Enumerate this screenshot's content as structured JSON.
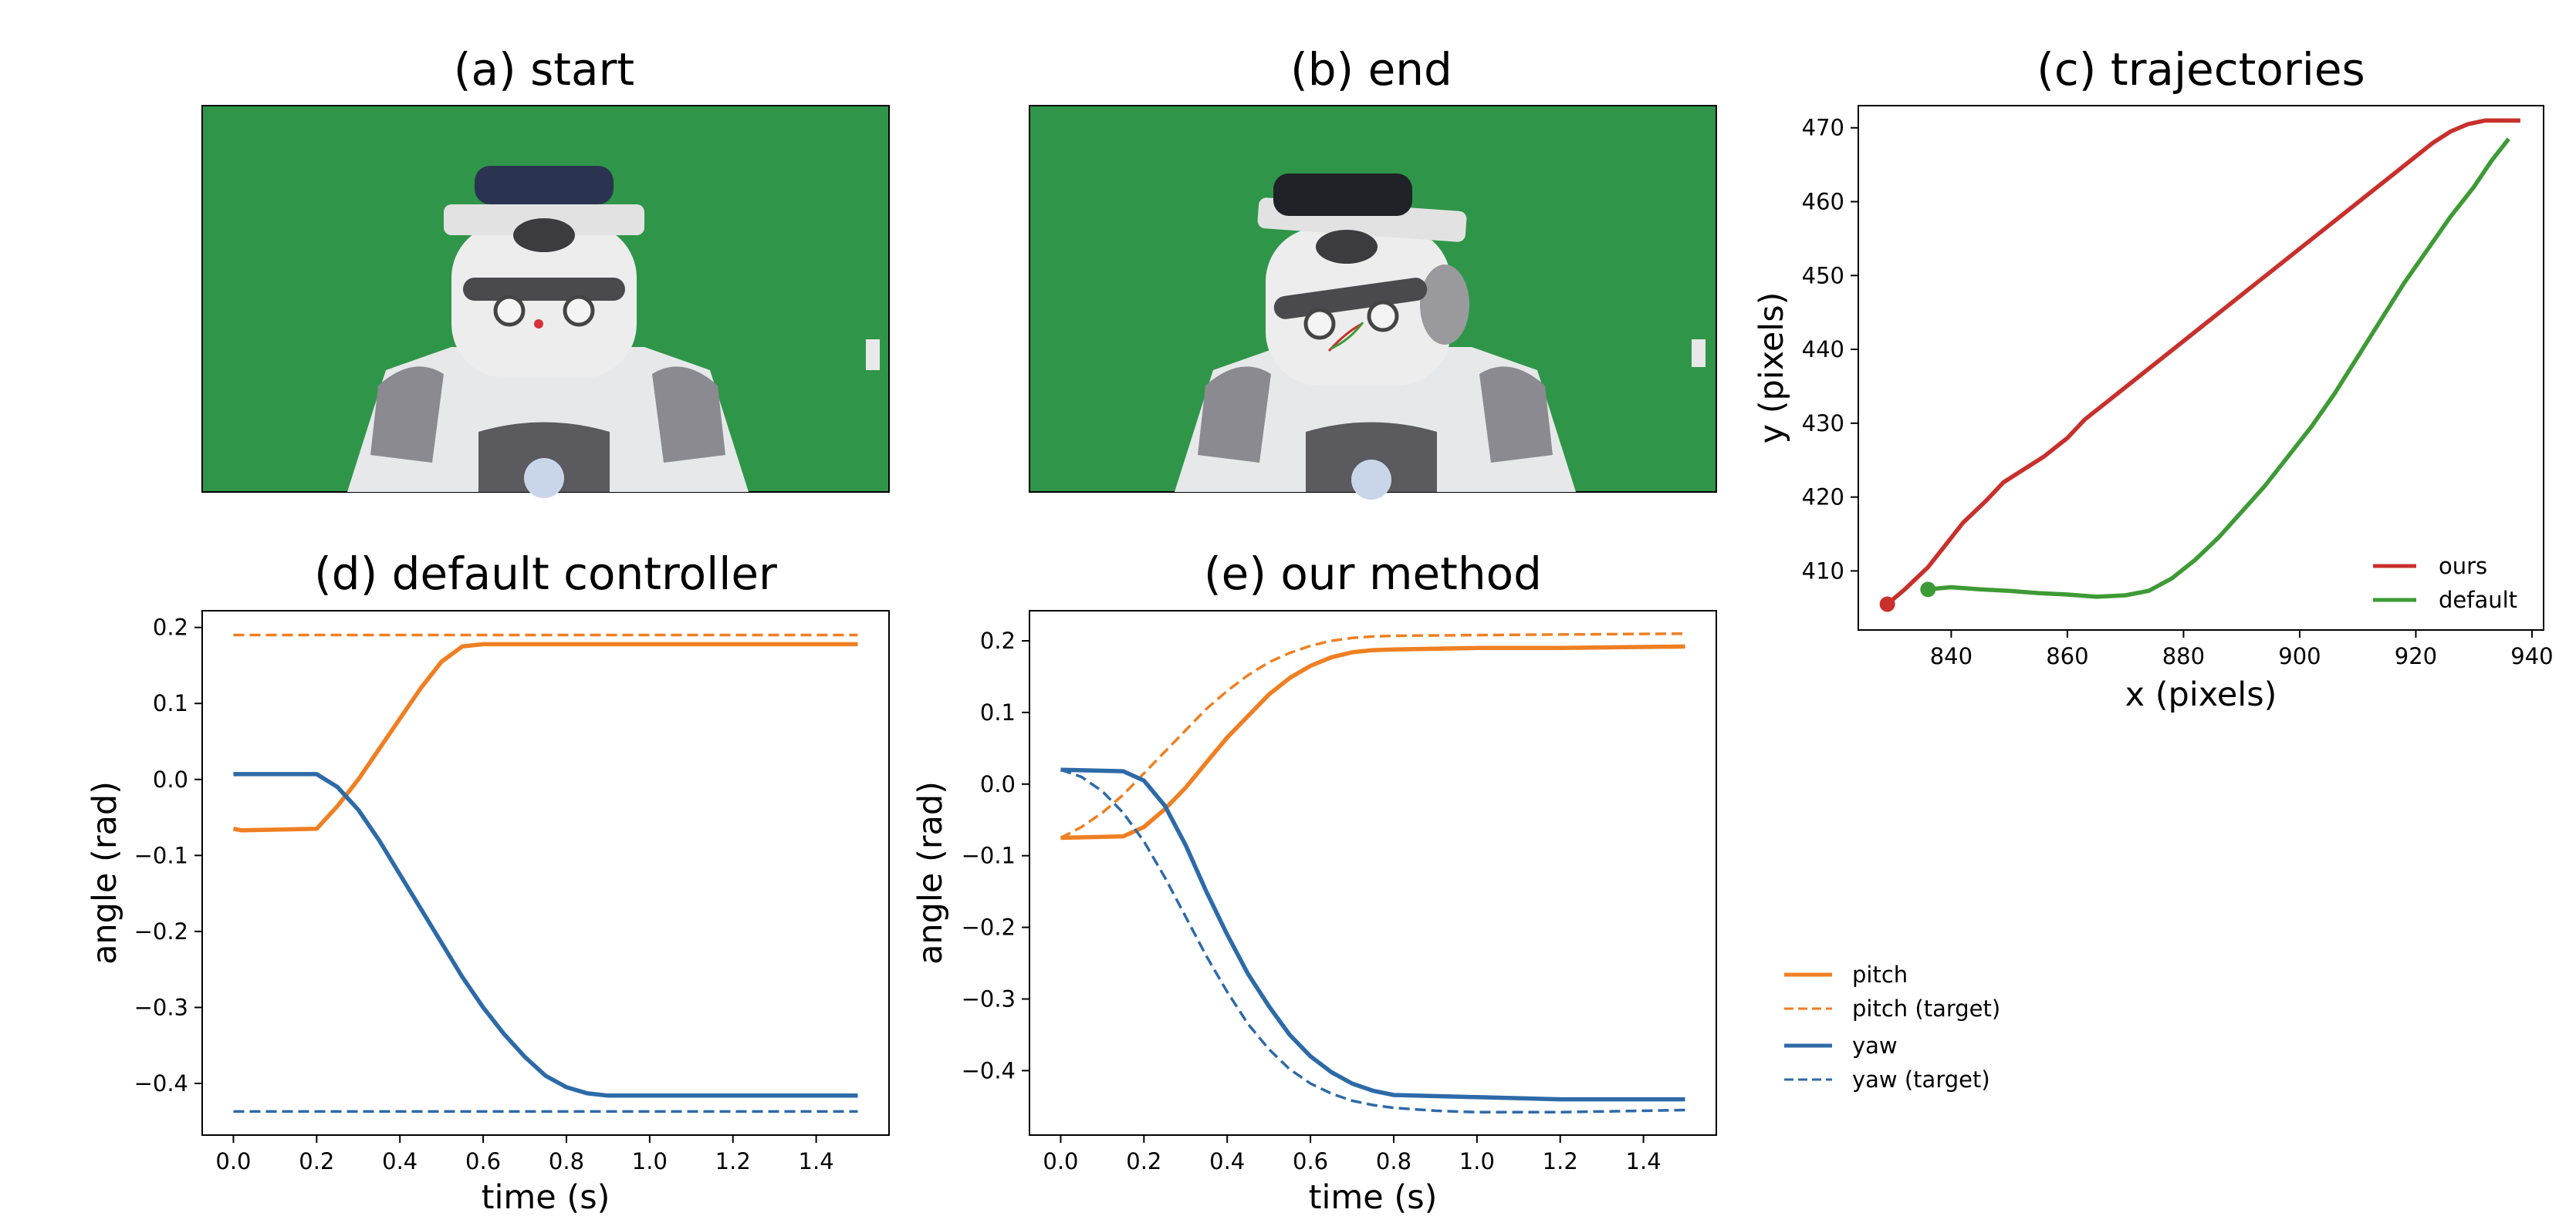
{
  "panels": {
    "a": {
      "title": "(a) start"
    },
    "b": {
      "title": "(b) end"
    }
  },
  "colors": {
    "pitch": "#ef7f22",
    "yaw": "#2d6aa8",
    "ours": "#c8302c",
    "default": "#3e9a35",
    "green_screen": "#2f9649"
  },
  "icons": {
    "a": "robot-head-start-photo",
    "b": "robot-head-end-photo"
  },
  "chart_data": [
    {
      "id": "c",
      "type": "line",
      "title": "(c) trajectories",
      "xlabel": "x (pixels)",
      "ylabel": "y (pixels)",
      "xlim": [
        824,
        942
      ],
      "ylim": [
        402,
        473
      ],
      "xticks": [
        840,
        860,
        880,
        900,
        920,
        940
      ],
      "yticks": [
        410,
        420,
        430,
        440,
        450,
        460,
        470
      ],
      "legend_position": "lower right",
      "series": [
        {
          "name": "ours",
          "color": "#c8302c",
          "start_marker": true,
          "x": [
            829,
            832,
            836,
            839,
            842,
            846,
            849,
            853,
            856,
            860,
            863,
            867,
            871,
            875,
            879,
            883,
            887,
            891,
            895,
            899,
            903,
            907,
            911,
            915,
            919,
            923,
            926,
            929,
            932,
            935,
            938
          ],
          "y": [
            405.5,
            407.5,
            410.5,
            413.5,
            416.5,
            419.5,
            422,
            424,
            425.5,
            428,
            430.5,
            433,
            435.5,
            438,
            440.5,
            443,
            445.5,
            448,
            450.5,
            453,
            455.5,
            458,
            460.5,
            463,
            465.5,
            468,
            469.5,
            470.5,
            471,
            471,
            471
          ]
        },
        {
          "name": "default",
          "color": "#3e9a35",
          "start_marker": true,
          "x": [
            836,
            840,
            845,
            850,
            855,
            860,
            865,
            870,
            874,
            878,
            882,
            886,
            890,
            894,
            898,
            902,
            906,
            910,
            914,
            918,
            922,
            926,
            930,
            933,
            936
          ],
          "y": [
            407.5,
            407.8,
            407.5,
            407.3,
            407,
            406.8,
            406.5,
            406.7,
            407.3,
            409,
            411.5,
            414.5,
            418,
            421.5,
            425.5,
            429.5,
            434,
            439,
            444,
            449,
            453.5,
            458,
            462,
            465.5,
            468.5
          ]
        }
      ]
    },
    {
      "id": "d",
      "type": "line",
      "title": "(d) default controller",
      "xlabel": "time (s)",
      "ylabel": "angle (rad)",
      "xlim": [
        -0.075,
        1.575
      ],
      "ylim": [
        -0.468,
        0.222
      ],
      "xticks": [
        0.0,
        0.2,
        0.4,
        0.6,
        0.8,
        1.0,
        1.2,
        1.4
      ],
      "yticks": [
        0.2,
        0.1,
        0.0,
        -0.1,
        -0.2,
        -0.3,
        -0.4
      ],
      "series": [
        {
          "name": "pitch",
          "color": "#ef7f22",
          "dash": false,
          "x": [
            0.0,
            0.02,
            0.2,
            0.25,
            0.3,
            0.35,
            0.4,
            0.45,
            0.5,
            0.55,
            0.6,
            0.7,
            1.0,
            1.5
          ],
          "y": [
            -0.065,
            -0.067,
            -0.065,
            -0.035,
            0.0,
            0.04,
            0.08,
            0.12,
            0.155,
            0.175,
            0.178,
            0.178,
            0.178,
            0.178
          ]
        },
        {
          "name": "pitch (target)",
          "color": "#ef7f22",
          "dash": true,
          "x": [
            0.0,
            1.5
          ],
          "y": [
            0.19,
            0.19
          ]
        },
        {
          "name": "yaw",
          "color": "#2d6aa8",
          "dash": false,
          "x": [
            0.0,
            0.2,
            0.25,
            0.3,
            0.35,
            0.4,
            0.45,
            0.5,
            0.55,
            0.6,
            0.65,
            0.7,
            0.75,
            0.8,
            0.85,
            0.9,
            1.0,
            1.5
          ],
          "y": [
            0.007,
            0.007,
            -0.01,
            -0.04,
            -0.08,
            -0.125,
            -0.17,
            -0.215,
            -0.26,
            -0.3,
            -0.335,
            -0.365,
            -0.39,
            -0.405,
            -0.413,
            -0.416,
            -0.416,
            -0.416
          ]
        },
        {
          "name": "yaw (target)",
          "color": "#2d6aa8",
          "dash": true,
          "x": [
            0.0,
            1.5
          ],
          "y": [
            -0.437,
            -0.437
          ]
        }
      ]
    },
    {
      "id": "e",
      "type": "line",
      "title": "(e) our method",
      "xlabel": "time (s)",
      "ylabel": "angle (rad)",
      "xlim": [
        -0.075,
        1.575
      ],
      "ylim": [
        -0.49,
        0.242
      ],
      "xticks": [
        0.0,
        0.2,
        0.4,
        0.6,
        0.8,
        1.0,
        1.2,
        1.4
      ],
      "yticks": [
        0.2,
        0.1,
        0.0,
        -0.1,
        -0.2,
        -0.3,
        -0.4
      ],
      "series": [
        {
          "name": "pitch",
          "color": "#ef7f22",
          "dash": false,
          "x": [
            0.0,
            0.15,
            0.2,
            0.25,
            0.3,
            0.35,
            0.4,
            0.45,
            0.5,
            0.55,
            0.6,
            0.65,
            0.7,
            0.75,
            0.8,
            1.0,
            1.2,
            1.5
          ],
          "y": [
            -0.075,
            -0.073,
            -0.06,
            -0.035,
            -0.005,
            0.03,
            0.065,
            0.095,
            0.125,
            0.148,
            0.165,
            0.177,
            0.184,
            0.187,
            0.188,
            0.19,
            0.19,
            0.192
          ]
        },
        {
          "name": "pitch (target)",
          "color": "#ef7f22",
          "dash": true,
          "x": [
            0.0,
            0.05,
            0.1,
            0.15,
            0.2,
            0.25,
            0.3,
            0.35,
            0.4,
            0.45,
            0.5,
            0.55,
            0.6,
            0.65,
            0.7,
            0.75,
            0.8,
            1.0,
            1.5
          ],
          "y": [
            -0.075,
            -0.06,
            -0.04,
            -0.015,
            0.015,
            0.045,
            0.075,
            0.105,
            0.13,
            0.152,
            0.17,
            0.183,
            0.193,
            0.2,
            0.204,
            0.206,
            0.207,
            0.208,
            0.21
          ]
        },
        {
          "name": "yaw",
          "color": "#2d6aa8",
          "dash": false,
          "x": [
            0.0,
            0.15,
            0.2,
            0.25,
            0.3,
            0.35,
            0.4,
            0.45,
            0.5,
            0.55,
            0.6,
            0.65,
            0.7,
            0.75,
            0.8,
            1.0,
            1.2,
            1.5
          ],
          "y": [
            0.02,
            0.018,
            0.005,
            -0.03,
            -0.085,
            -0.15,
            -0.21,
            -0.265,
            -0.31,
            -0.35,
            -0.38,
            -0.402,
            -0.418,
            -0.428,
            -0.434,
            -0.437,
            -0.44,
            -0.44
          ]
        },
        {
          "name": "yaw (target)",
          "color": "#2d6aa8",
          "dash": true,
          "x": [
            0.0,
            0.05,
            0.1,
            0.15,
            0.2,
            0.25,
            0.3,
            0.35,
            0.4,
            0.45,
            0.5,
            0.55,
            0.6,
            0.65,
            0.7,
            0.75,
            0.8,
            0.9,
            1.0,
            1.2,
            1.5
          ],
          "y": [
            0.02,
            0.01,
            -0.01,
            -0.04,
            -0.08,
            -0.13,
            -0.185,
            -0.24,
            -0.29,
            -0.335,
            -0.37,
            -0.398,
            -0.418,
            -0.432,
            -0.442,
            -0.448,
            -0.452,
            -0.456,
            -0.458,
            -0.458,
            -0.455
          ]
        }
      ]
    }
  ],
  "shared_legend": [
    {
      "label": "pitch",
      "color": "#ef7f22",
      "dash": false
    },
    {
      "label": "pitch (target)",
      "color": "#ef7f22",
      "dash": true
    },
    {
      "label": "yaw",
      "color": "#2d6aa8",
      "dash": false
    },
    {
      "label": "yaw (target)",
      "color": "#2d6aa8",
      "dash": true
    }
  ]
}
